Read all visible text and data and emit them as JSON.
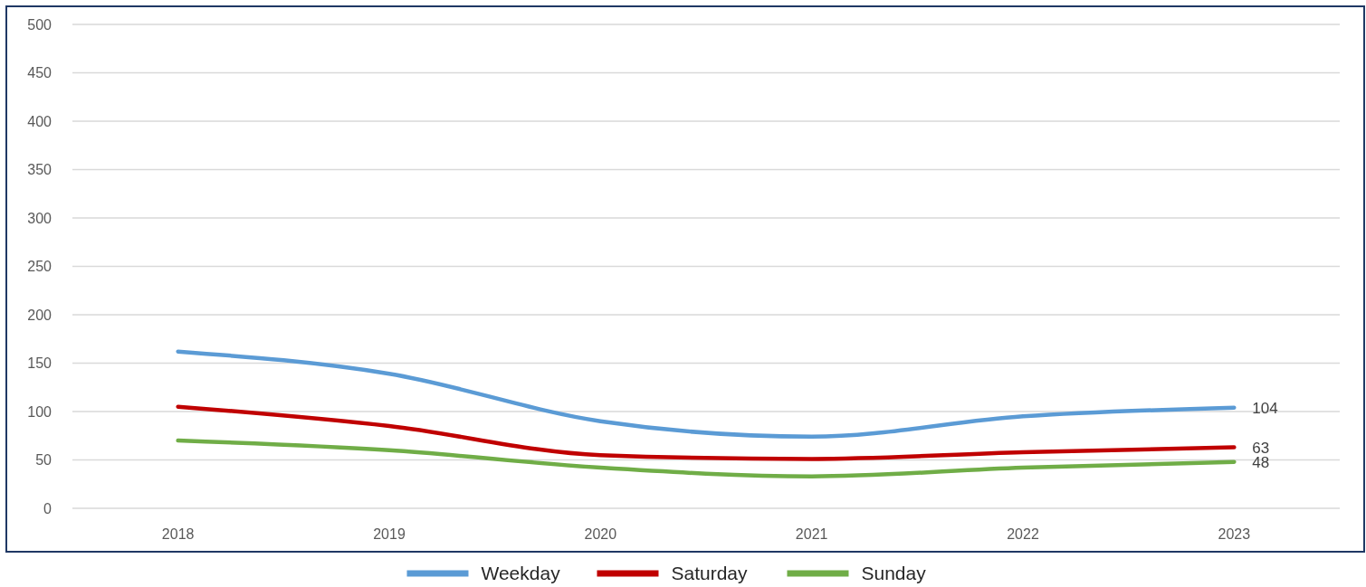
{
  "chart_data": {
    "type": "line",
    "categories": [
      "2018",
      "2019",
      "2020",
      "2021",
      "2022",
      "2023"
    ],
    "series": [
      {
        "name": "Weekday",
        "color": "#5b9bd5",
        "values": [
          162,
          139,
          90,
          74,
          95,
          104
        ],
        "value_labels": [
          null,
          null,
          null,
          null,
          null,
          "104"
        ]
      },
      {
        "name": "Saturday",
        "color": "#c00000",
        "values": [
          105,
          85,
          55,
          51,
          58,
          63
        ],
        "value_labels": [
          null,
          null,
          null,
          null,
          null,
          "63"
        ]
      },
      {
        "name": "Sunday",
        "color": "#70ad47",
        "values": [
          70,
          60,
          42,
          33,
          42,
          48
        ],
        "value_labels": [
          null,
          null,
          null,
          null,
          null,
          "48"
        ]
      }
    ],
    "ylim": [
      0,
      500
    ],
    "yticks": [
      0,
      50,
      100,
      150,
      200,
      250,
      300,
      350,
      400,
      450,
      500
    ],
    "grid": "y",
    "legend": "bottom",
    "line_style": "solid",
    "marker": "none"
  }
}
